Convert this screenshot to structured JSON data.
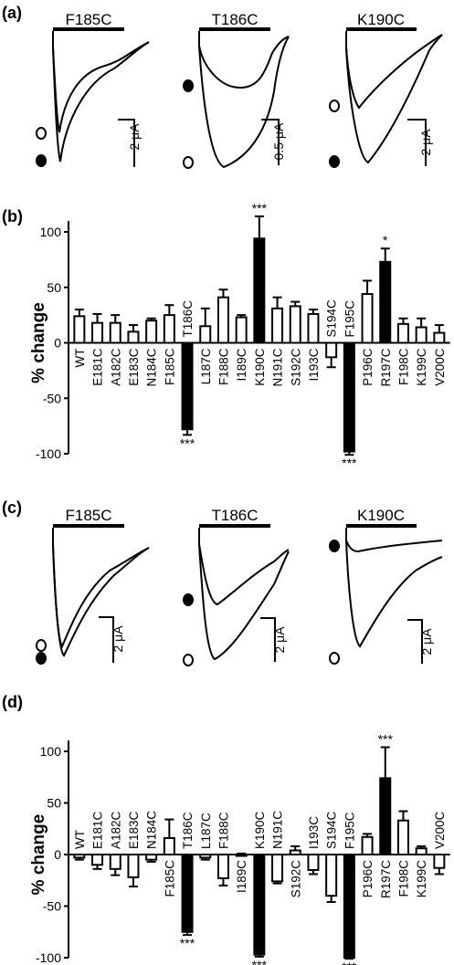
{
  "panels": {
    "a": "(a)",
    "b": "(b)",
    "c": "(c)",
    "d": "(d)"
  },
  "trace_panels": {
    "a": {
      "traces": [
        {
          "title": "F185C",
          "scale": "2 μA"
        },
        {
          "title": "T186C",
          "scale": "0.5 μA"
        },
        {
          "title": "K190C",
          "scale": "2 μA"
        }
      ]
    },
    "c": {
      "traces": [
        {
          "title": "F185C",
          "scale": "2 μA"
        },
        {
          "title": "T186C",
          "scale": "2 μA"
        },
        {
          "title": "K190C",
          "scale": "2 μA"
        }
      ]
    }
  },
  "chart_data": [
    {
      "type": "bar",
      "panel": "(b)",
      "ylabel": "% change",
      "ylim": [
        -100,
        100
      ],
      "yticks": [
        -100,
        -50,
        0,
        50,
        100
      ],
      "categories": [
        "WT",
        "E181C",
        "A182C",
        "E183C",
        "N184C",
        "F185C",
        "T186C",
        "L187C",
        "F188C",
        "I189C",
        "K190C",
        "N191C",
        "S192C",
        "I193C",
        "S194C",
        "F195C",
        "P196C",
        "R197C",
        "F198C",
        "K199C",
        "V200C"
      ],
      "values": [
        24,
        18,
        18,
        10,
        20,
        25,
        -78,
        15,
        41,
        23,
        94,
        31,
        33,
        26,
        -13,
        -98,
        44,
        73,
        17,
        14,
        9
      ],
      "errors": [
        6,
        8,
        7,
        6,
        2,
        9,
        5,
        16,
        7,
        2,
        20,
        10,
        4,
        4,
        9,
        3,
        12,
        12,
        5,
        8,
        7
      ],
      "filled": [
        false,
        false,
        false,
        false,
        false,
        false,
        true,
        false,
        false,
        false,
        true,
        false,
        false,
        false,
        false,
        true,
        false,
        true,
        false,
        false,
        false
      ],
      "significance": [
        "",
        "",
        "",
        "",
        "",
        "",
        "***",
        "",
        "",
        "",
        "***",
        "",
        "",
        "",
        "",
        "***",
        "",
        "*",
        "",
        "",
        ""
      ]
    },
    {
      "type": "bar",
      "panel": "(d)",
      "ylabel": "% change",
      "ylim": [
        -100,
        100
      ],
      "yticks": [
        -100,
        -50,
        0,
        50,
        100
      ],
      "categories": [
        "WT",
        "E181C",
        "A182C",
        "E183C",
        "N184C",
        "F185C",
        "T186C",
        "L187C",
        "F188C",
        "I189C",
        "K190C",
        "N191C",
        "S192C",
        "I193C",
        "S194C",
        "F195C",
        "P196C",
        "R197C",
        "F198C",
        "K199C",
        "V200C"
      ],
      "values": [
        -3,
        -10,
        -14,
        -22,
        -5,
        16,
        -75,
        -3,
        -23,
        0,
        -97,
        -26,
        4,
        -15,
        -40,
        -100,
        17,
        74,
        33,
        6,
        -13
      ],
      "errors": [
        2,
        4,
        6,
        9,
        2,
        18,
        3,
        2,
        7,
        1,
        2,
        2,
        4,
        4,
        6,
        1,
        3,
        30,
        9,
        2,
        6
      ],
      "filled": [
        false,
        false,
        false,
        false,
        false,
        false,
        true,
        false,
        false,
        false,
        true,
        false,
        false,
        false,
        false,
        true,
        false,
        true,
        false,
        false,
        false
      ],
      "significance": [
        "",
        "",
        "",
        "",
        "",
        "",
        "***",
        "",
        "",
        "",
        "***",
        "",
        "",
        "",
        "",
        "***",
        "",
        "***",
        "",
        "",
        ""
      ]
    }
  ]
}
